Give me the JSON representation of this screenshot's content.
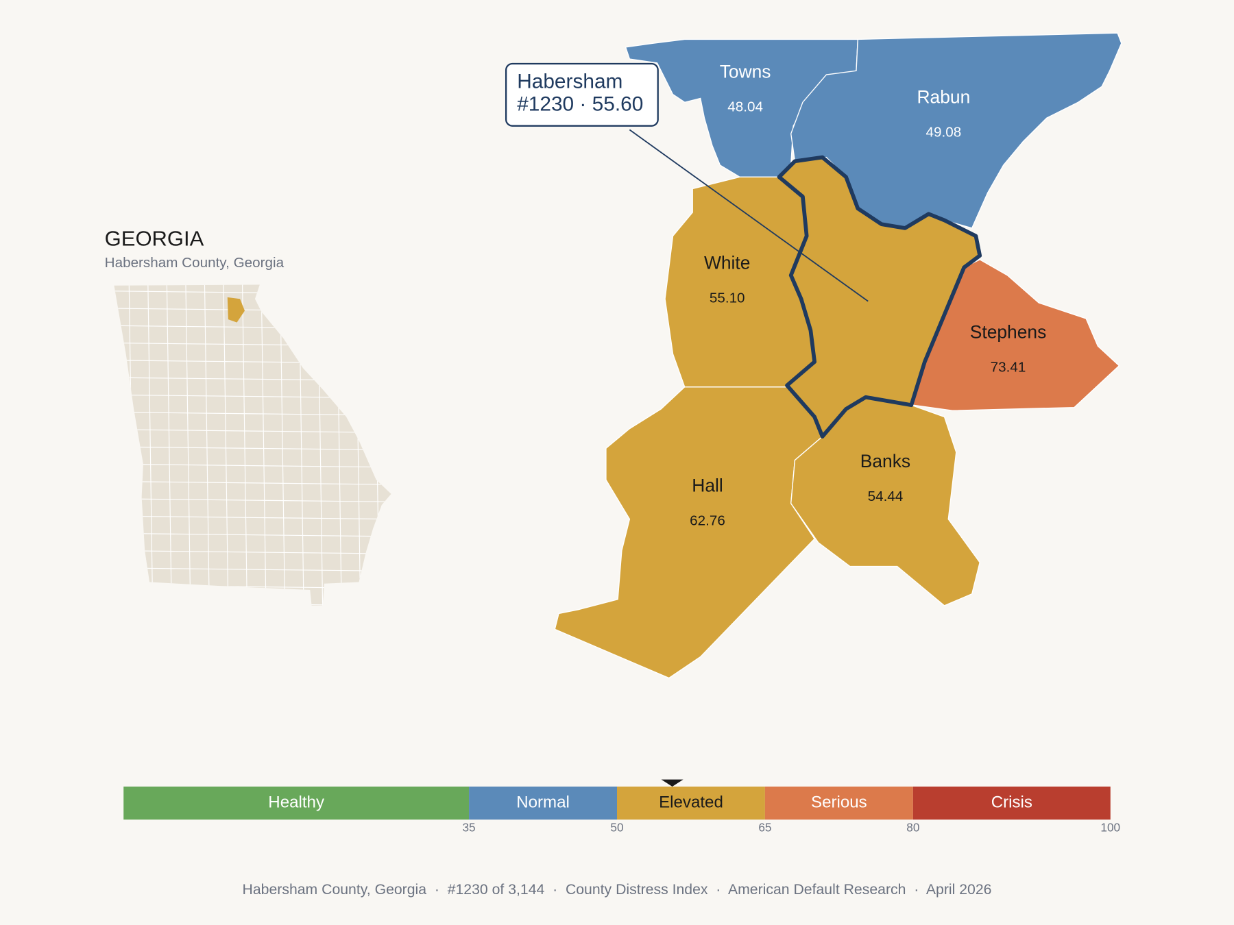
{
  "inset": {
    "title": "GEORGIA",
    "subtitle": "Habersham County, Georgia"
  },
  "selected": {
    "name": "Habersham",
    "detail": "#1230 · 55.60",
    "color": "#d4a43c",
    "outline": "#1f3a5f"
  },
  "counties": [
    {
      "name": "Towns",
      "value": "48.04",
      "color": "#5b8ab9"
    },
    {
      "name": "Rabun",
      "value": "49.08",
      "color": "#5b8ab9"
    },
    {
      "name": "White",
      "value": "55.10",
      "color": "#d4a43c"
    },
    {
      "name": "Stephens",
      "value": "73.41",
      "color": "#dc7a4b"
    },
    {
      "name": "Hall",
      "value": "62.76",
      "color": "#d4a43c"
    },
    {
      "name": "Banks",
      "value": "54.44",
      "color": "#d4a43c"
    }
  ],
  "scale": {
    "range": [
      0,
      100
    ],
    "ticks": [
      35,
      50,
      65,
      80,
      100
    ],
    "bands": [
      {
        "label": "Healthy",
        "color": "#68a85a"
      },
      {
        "label": "Normal",
        "color": "#5b8ab9"
      },
      {
        "label": "Elevated",
        "color": "#d4a43c"
      },
      {
        "label": "Serious",
        "color": "#dc7a4b"
      },
      {
        "label": "Crisis",
        "color": "#b93e2f"
      }
    ],
    "marker": 55.6
  },
  "footer": "Habersham County, Georgia  ·  #1230 of 3,144  ·  County Distress Index  ·  American Default Research  ·  April 2026"
}
